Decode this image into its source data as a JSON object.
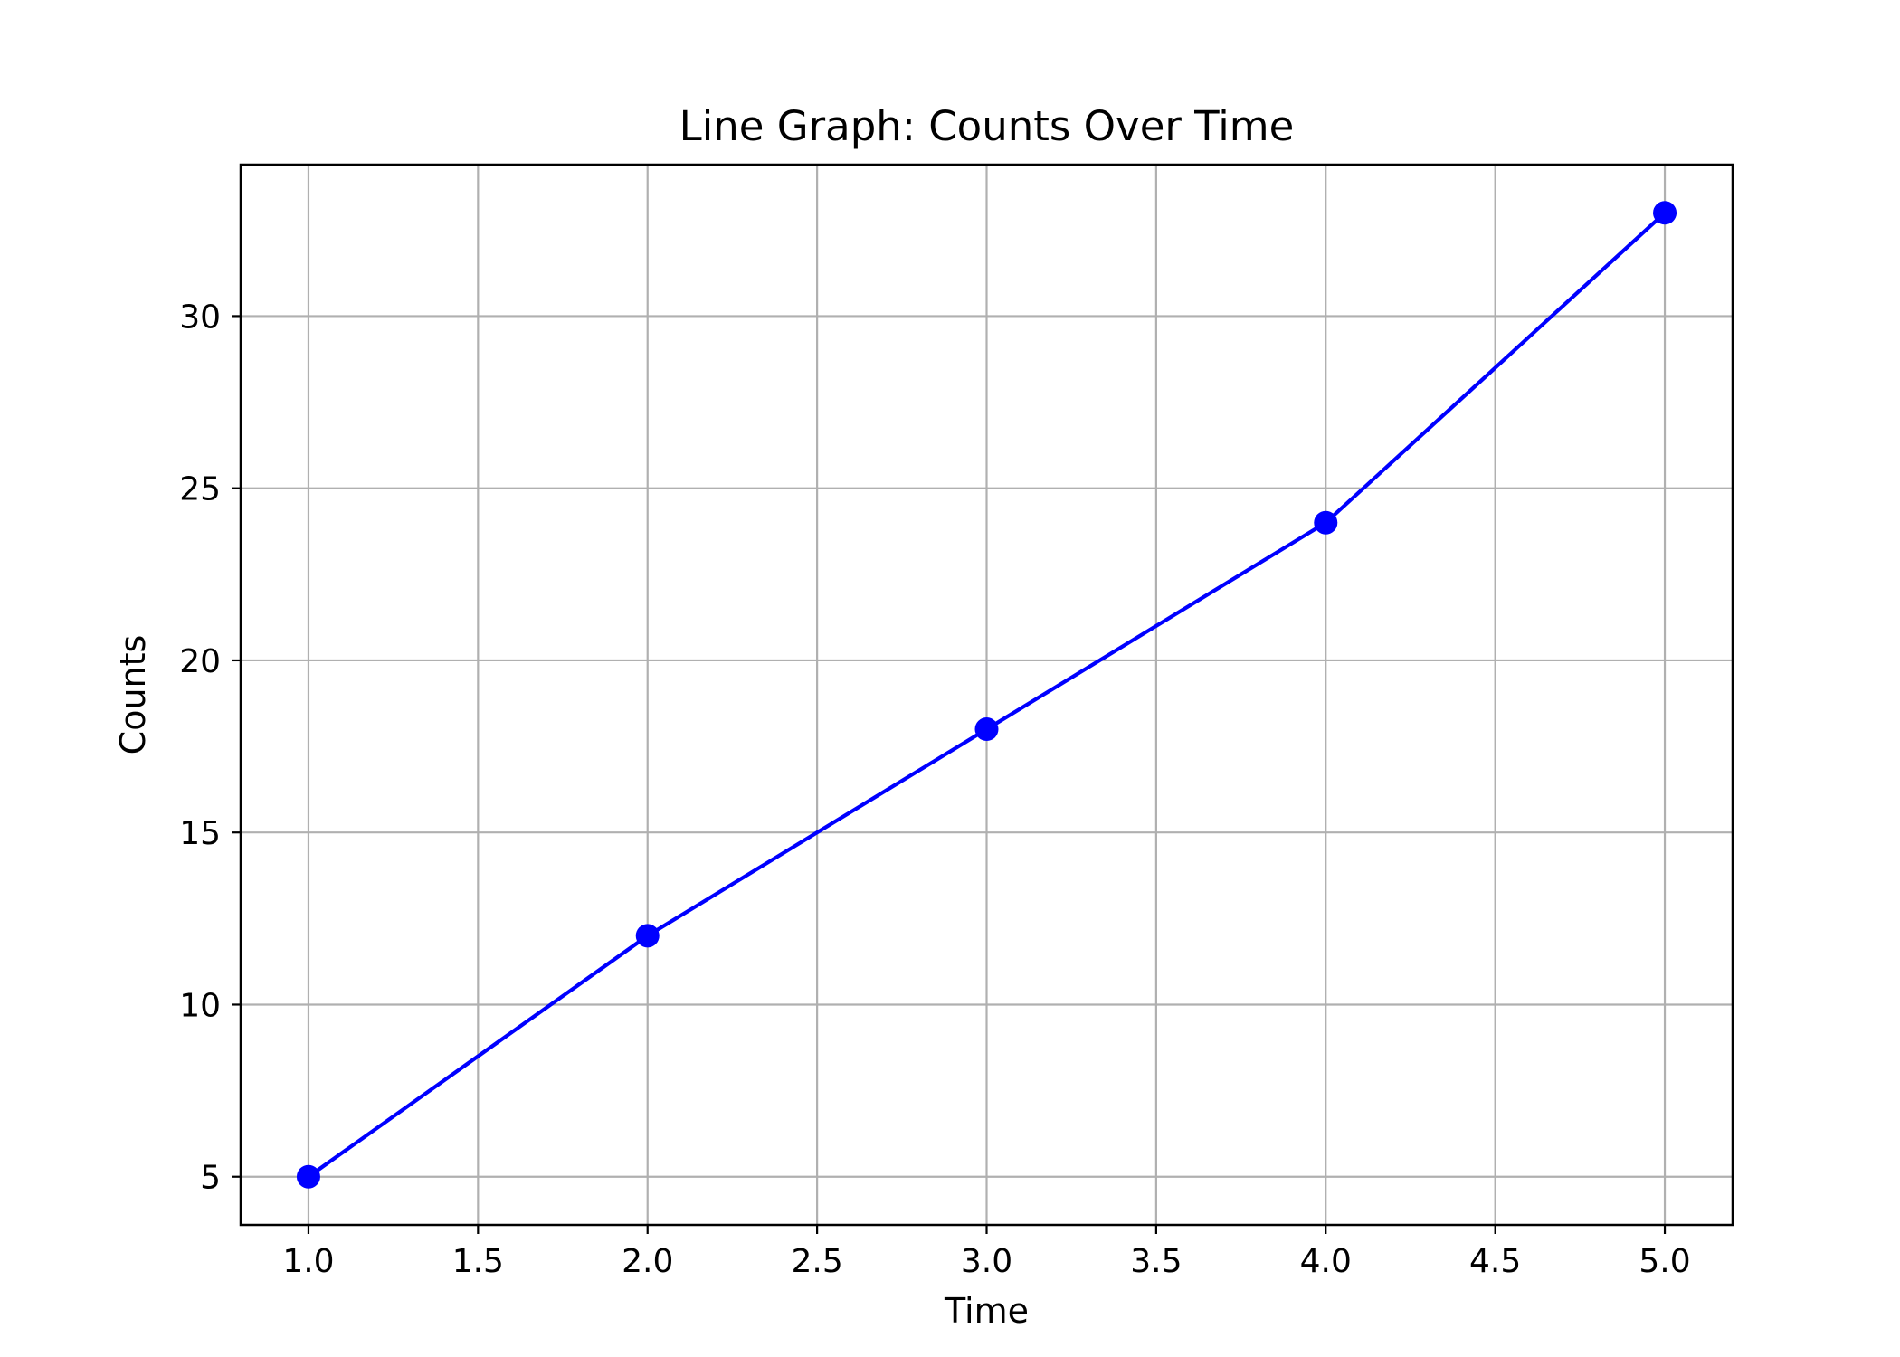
{
  "chart_data": {
    "type": "line",
    "title": "Line Graph: Counts Over Time",
    "xlabel": "Time",
    "ylabel": "Counts",
    "x": [
      1,
      2,
      3,
      4,
      5
    ],
    "series": [
      {
        "values": [
          5,
          12,
          18,
          24,
          33
        ],
        "color": "#0000ff",
        "marker": "circle"
      }
    ],
    "xlim": [
      0.8,
      5.2
    ],
    "ylim": [
      3.6,
      34.4
    ],
    "xticks": [
      1.0,
      1.5,
      2.0,
      2.5,
      3.0,
      3.5,
      4.0,
      4.5,
      5.0
    ],
    "xtick_labels": [
      "1.0",
      "1.5",
      "2.0",
      "2.5",
      "3.0",
      "3.5",
      "4.0",
      "4.5",
      "5.0"
    ],
    "yticks": [
      5,
      10,
      15,
      20,
      25,
      30
    ],
    "ytick_labels": [
      "5",
      "10",
      "15",
      "20",
      "25",
      "30"
    ],
    "grid": true,
    "grid_color": "#b0b0b0"
  }
}
